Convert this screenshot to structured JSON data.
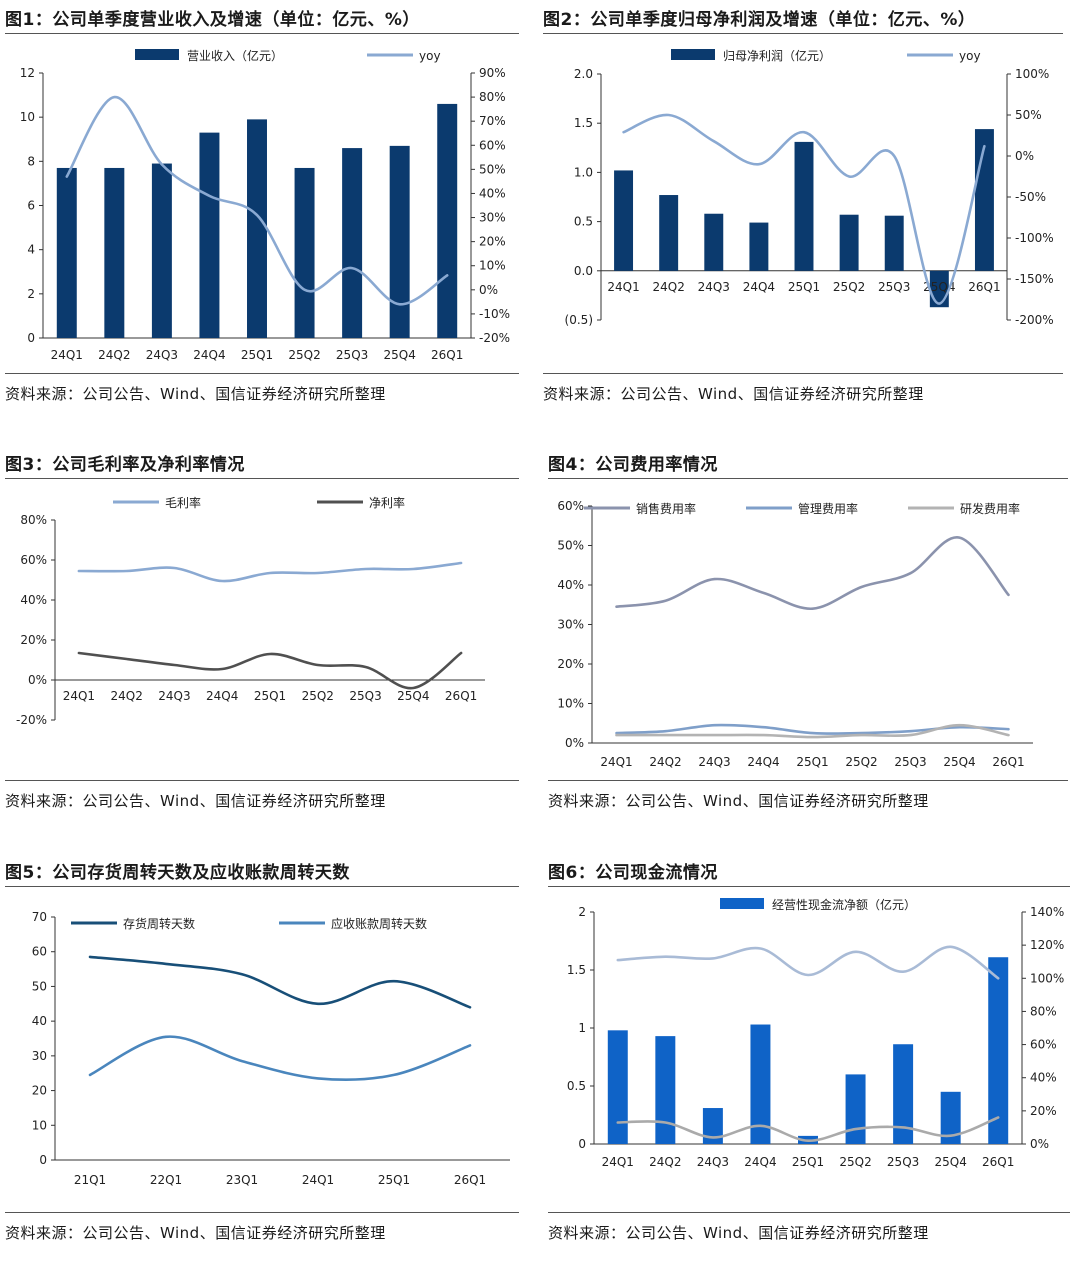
{
  "colors": {
    "navy": "#0b3a6e",
    "light_blue": "#8aa9d2",
    "dark_gray": "#505050",
    "gray_blue": "#8b93ad",
    "mid_blue": "#7f9fc9",
    "light_gray": "#b3b3b3",
    "teal_navy": "#184f78",
    "steel_blue": "#4a86bd",
    "bright_blue": "#0f63c7",
    "pale_blue": "#a9bbd6",
    "silver": "#aaaaaa",
    "negative_red": "#e02020"
  },
  "panels": [
    {
      "title": "图1：公司单季度营业收入及增速（单位：亿元、%）",
      "source": "资料来源：公司公告、Wind、国信证券经济研究所整理"
    },
    {
      "title": "图2：公司单季度归母净利润及增速（单位：亿元、%）",
      "source": "资料来源：公司公告、Wind、国信证券经济研究所整理"
    },
    {
      "title": "图3：公司毛利率及净利率情况",
      "source": "资料来源：公司公告、Wind、国信证券经济研究所整理"
    },
    {
      "title": "图4：公司费用率情况",
      "source": "资料来源：公司公告、Wind、国信证券经济研究所整理"
    },
    {
      "title": "图5：公司存货周转天数及应收账款周转天数",
      "source": "资料来源：公司公告、Wind、国信证券经济研究所整理"
    },
    {
      "title": "图6：公司现金流情况",
      "source": "资料来源：公司公告、Wind、国信证券经济研究所整理"
    }
  ],
  "chart_data": [
    {
      "type": "bar",
      "title": "图1：公司单季度营业收入及增速（单位：亿元、%）",
      "categories": [
        "24Q1",
        "24Q2",
        "24Q3",
        "24Q4",
        "25Q1",
        "25Q2",
        "25Q3",
        "25Q4",
        "26Q1"
      ],
      "series": [
        {
          "name": "营业收入（亿元）",
          "kind": "bar",
          "axis": "left",
          "color": "#0b3a6e",
          "values": [
            7.7,
            7.7,
            7.9,
            9.3,
            9.9,
            7.7,
            8.6,
            8.7,
            10.6
          ]
        },
        {
          "name": "yoy",
          "kind": "line",
          "axis": "right",
          "color": "#8aa9d2",
          "values": [
            47,
            80,
            52,
            39,
            31,
            0,
            9,
            -6,
            6
          ]
        }
      ],
      "y_left": {
        "min": 0,
        "max": 12,
        "ticks": [
          0,
          2,
          4,
          6,
          8,
          10,
          12
        ],
        "labels": [
          "0",
          "2",
          "4",
          "6",
          "8",
          "10",
          "12"
        ]
      },
      "y_right": {
        "min": -20,
        "max": 90,
        "ticks": [
          -20,
          -10,
          0,
          10,
          20,
          30,
          40,
          50,
          60,
          70,
          80,
          90
        ],
        "labels": [
          "-20%",
          "-10%",
          "0%",
          "10%",
          "20%",
          "30%",
          "40%",
          "50%",
          "60%",
          "70%",
          "80%",
          "90%"
        ]
      },
      "legend": "top"
    },
    {
      "type": "bar",
      "title": "图2：公司单季度归母净利润及增速（单位：亿元、%）",
      "categories": [
        "24Q1",
        "24Q2",
        "24Q3",
        "24Q4",
        "25Q1",
        "25Q2",
        "25Q3",
        "25Q4",
        "26Q1"
      ],
      "series": [
        {
          "name": "归母净利润（亿元）",
          "kind": "bar",
          "axis": "left",
          "color": "#0b3a6e",
          "values": [
            1.02,
            0.77,
            0.58,
            0.49,
            1.31,
            0.57,
            0.56,
            -0.37,
            1.44
          ]
        },
        {
          "name": "yoy",
          "kind": "line",
          "axis": "right",
          "color": "#8aa9d2",
          "values": [
            29,
            50,
            18,
            -10,
            29,
            -25,
            0,
            -180,
            12
          ]
        }
      ],
      "y_left": {
        "min": -0.5,
        "max": 2.0,
        "ticks": [
          -0.5,
          0,
          0.5,
          1.0,
          1.5,
          2.0
        ],
        "labels": [
          "(0.5)",
          "0.0",
          "0.5",
          "1.0",
          "1.5",
          "2.0"
        ]
      },
      "y_right": {
        "min": -200,
        "max": 100,
        "ticks": [
          -200,
          -150,
          -100,
          -50,
          0,
          50,
          100
        ],
        "labels": [
          "-200%",
          "-150%",
          "-100%",
          "-50%",
          "0%",
          "50%",
          "100%"
        ]
      },
      "legend": "top"
    },
    {
      "type": "line",
      "title": "图3：公司毛利率及净利率情况",
      "categories": [
        "24Q1",
        "24Q2",
        "24Q3",
        "24Q4",
        "25Q1",
        "25Q2",
        "25Q3",
        "25Q4",
        "26Q1"
      ],
      "series": [
        {
          "name": "毛利率",
          "color": "#8aa9d2",
          "values": [
            54.5,
            54.5,
            56,
            49.5,
            53.5,
            53.5,
            55.5,
            55.5,
            58.5
          ]
        },
        {
          "name": "净利率",
          "color": "#505050",
          "values": [
            13.5,
            10.5,
            7.5,
            5.5,
            13,
            7.5,
            6.5,
            -4,
            13.5
          ]
        }
      ],
      "y": {
        "min": -20,
        "max": 80,
        "ticks": [
          -20,
          0,
          20,
          40,
          60,
          80
        ],
        "labels": [
          "-20%",
          "0%",
          "20%",
          "40%",
          "60%",
          "80%"
        ]
      },
      "legend": "top"
    },
    {
      "type": "line",
      "title": "图4：公司费用率情况",
      "categories": [
        "24Q1",
        "24Q2",
        "24Q3",
        "24Q4",
        "25Q1",
        "25Q2",
        "25Q3",
        "25Q4",
        "26Q1"
      ],
      "series": [
        {
          "name": "销售费用率",
          "color": "#8b93ad",
          "values": [
            34.5,
            36,
            41.5,
            38,
            34,
            39.5,
            43,
            52,
            37.5
          ]
        },
        {
          "name": "管理费用率",
          "color": "#7f9fc9",
          "values": [
            2.5,
            3,
            4.5,
            4,
            2.5,
            2.5,
            3,
            4,
            3.5
          ]
        },
        {
          "name": "研发费用率",
          "color": "#b3b3b3",
          "values": [
            2,
            2,
            2,
            2,
            1.5,
            2,
            2,
            4.5,
            2
          ]
        }
      ],
      "y": {
        "min": 0,
        "max": 60,
        "ticks": [
          0,
          10,
          20,
          30,
          40,
          50,
          60
        ],
        "labels": [
          "0%",
          "10%",
          "20%",
          "30%",
          "40%",
          "50%",
          "60%"
        ]
      },
      "legend": "top"
    },
    {
      "type": "line",
      "title": "图5：公司存货周转天数及应收账款周转天数",
      "categories": [
        "21Q1",
        "22Q1",
        "23Q1",
        "24Q1",
        "25Q1",
        "26Q1"
      ],
      "series": [
        {
          "name": "存货周转天数",
          "color": "#184f78",
          "values": [
            58.5,
            56.5,
            53.5,
            45,
            51.5,
            44
          ]
        },
        {
          "name": "应收账款周转天数",
          "color": "#4a86bd",
          "values": [
            24.5,
            35.5,
            28.5,
            23.5,
            24.5,
            33
          ]
        }
      ],
      "y": {
        "min": 0,
        "max": 70,
        "ticks": [
          0,
          10,
          20,
          30,
          40,
          50,
          60,
          70
        ],
        "labels": [
          "0",
          "10",
          "20",
          "30",
          "40",
          "50",
          "60",
          "70"
        ]
      },
      "legend": "top"
    },
    {
      "type": "bar",
      "title": "图6：公司现金流情况",
      "categories": [
        "24Q1",
        "24Q2",
        "24Q3",
        "24Q4",
        "25Q1",
        "25Q2",
        "25Q3",
        "25Q4",
        "26Q1"
      ],
      "series": [
        {
          "name": "经营性现金流净额（亿元）",
          "kind": "bar",
          "axis": "left",
          "color": "#0f63c7",
          "values": [
            0.98,
            0.93,
            0.31,
            1.03,
            0.07,
            0.6,
            0.86,
            0.45,
            1.61
          ]
        },
        {
          "name": "",
          "kind": "line",
          "axis": "right",
          "color": "#a9bbd6",
          "values": [
            111,
            113,
            112,
            118,
            102,
            116,
            104,
            119,
            100
          ]
        },
        {
          "name": "",
          "kind": "line",
          "axis": "right",
          "color": "#aaaaaa",
          "values": [
            13,
            13,
            4,
            11,
            2,
            9,
            10,
            5,
            16
          ]
        }
      ],
      "y_left": {
        "min": 0,
        "max": 2,
        "ticks": [
          0,
          0.5,
          1,
          1.5,
          2
        ],
        "labels": [
          "0",
          "0.5",
          "1",
          "1.5",
          "2"
        ]
      },
      "y_right": {
        "min": 0,
        "max": 140,
        "ticks": [
          0,
          20,
          40,
          60,
          80,
          100,
          120,
          140
        ],
        "labels": [
          "0%",
          "20%",
          "40%",
          "60%",
          "80%",
          "100%",
          "120%",
          "140%"
        ]
      },
      "legend": "top"
    }
  ]
}
